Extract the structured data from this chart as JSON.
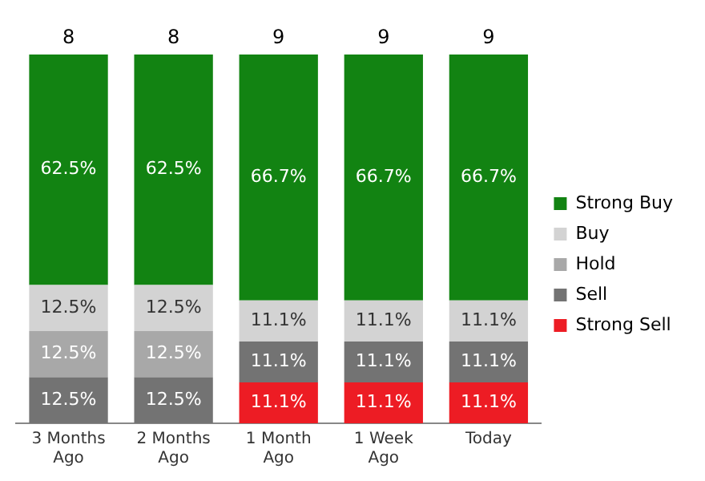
{
  "chart_data": {
    "type": "bar",
    "stacked": true,
    "categories": [
      "3 Months Ago",
      "2 Months Ago",
      "1 Month Ago",
      "1 Week Ago",
      "Today"
    ],
    "ylim": [
      0,
      100
    ],
    "tick_labels": "x",
    "grid": false,
    "legend": "right",
    "series": [
      {
        "name": "Strong Sell",
        "color": "#ed1c24",
        "values": [
          0,
          0,
          11.1,
          11.1,
          11.1
        ],
        "value_labels": [
          null,
          null,
          "11.1%",
          "11.1%",
          "11.1%"
        ]
      },
      {
        "name": "Sell",
        "color": "#737373",
        "values": [
          12.5,
          12.5,
          11.1,
          11.1,
          11.1
        ],
        "value_labels": [
          "12.5%",
          "12.5%",
          "11.1%",
          "11.1%",
          "11.1%"
        ]
      },
      {
        "name": "Hold",
        "color": "#a8a8a8",
        "values": [
          12.5,
          12.5,
          0,
          0,
          0
        ],
        "value_labels": [
          "12.5%",
          "12.5%",
          null,
          null,
          null
        ]
      },
      {
        "name": "Buy",
        "color": "#d3d3d3",
        "values": [
          12.5,
          12.5,
          11.1,
          11.1,
          11.1
        ],
        "value_labels": [
          "12.5%",
          "12.5%",
          "11.1%",
          "11.1%",
          "11.1%"
        ]
      },
      {
        "name": "Strong Buy",
        "color": "#128312",
        "values": [
          62.5,
          62.5,
          66.7,
          66.7,
          66.7
        ],
        "value_labels": [
          "62.5%",
          "62.5%",
          "66.7%",
          "66.7%",
          "66.7%"
        ]
      }
    ],
    "annotations": [
      {
        "text": "8",
        "x": "3 Months Ago",
        "y": 100
      },
      {
        "text": "8",
        "x": "2 Months Ago",
        "y": 100
      },
      {
        "text": "9",
        "x": "1 Month Ago",
        "y": 100
      },
      {
        "text": "9",
        "x": "1 Week Ago",
        "y": 100
      },
      {
        "text": "9",
        "x": "Today",
        "y": 100
      }
    ]
  }
}
